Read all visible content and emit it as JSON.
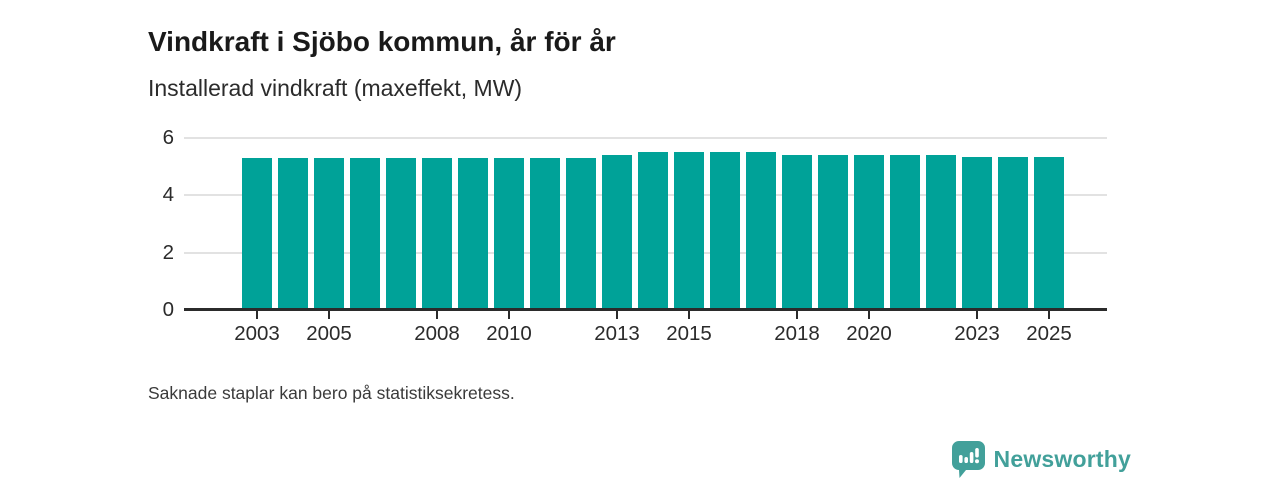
{
  "header": {
    "title": "Vindkraft i Sjöbo kommun, år för år",
    "subtitle": "Installerad vindkraft (maxeffekt, MW)"
  },
  "footnote": "Saknade staplar kan bero på statistiksekretess.",
  "brand": {
    "name": "Newsworthy",
    "icon": "bar-chart-speech-bubble",
    "color": "#42a09a"
  },
  "colors": {
    "bar": "#00a298",
    "grid": "#e2e2e2",
    "axis": "#2b2b2b",
    "title_text": "#1a1a1a"
  },
  "chart_data": {
    "type": "bar",
    "title": "Vindkraft i Sjöbo kommun, år för år",
    "subtitle_unit": "Installerad vindkraft (maxeffekt, MW)",
    "xlabel": "",
    "ylabel": "MW",
    "x": [
      2003,
      2004,
      2005,
      2006,
      2007,
      2008,
      2009,
      2010,
      2011,
      2012,
      2013,
      2014,
      2015,
      2016,
      2017,
      2018,
      2019,
      2020,
      2021,
      2022,
      2023,
      2024,
      2025
    ],
    "values": [
      5.3,
      5.3,
      5.3,
      5.3,
      5.3,
      5.3,
      5.3,
      5.3,
      5.3,
      5.3,
      5.4,
      5.5,
      5.5,
      5.5,
      5.5,
      5.4,
      5.4,
      5.4,
      5.4,
      5.4,
      5.35,
      5.35,
      5.35
    ],
    "x_tick_labels": [
      2003,
      2005,
      2008,
      2010,
      2013,
      2015,
      2018,
      2020,
      2023,
      2025
    ],
    "y_ticks": [
      0,
      2,
      4,
      6
    ],
    "ylim": [
      0,
      6
    ],
    "grid": "horizontal",
    "legend": "none",
    "bar_color": "#00a298"
  }
}
